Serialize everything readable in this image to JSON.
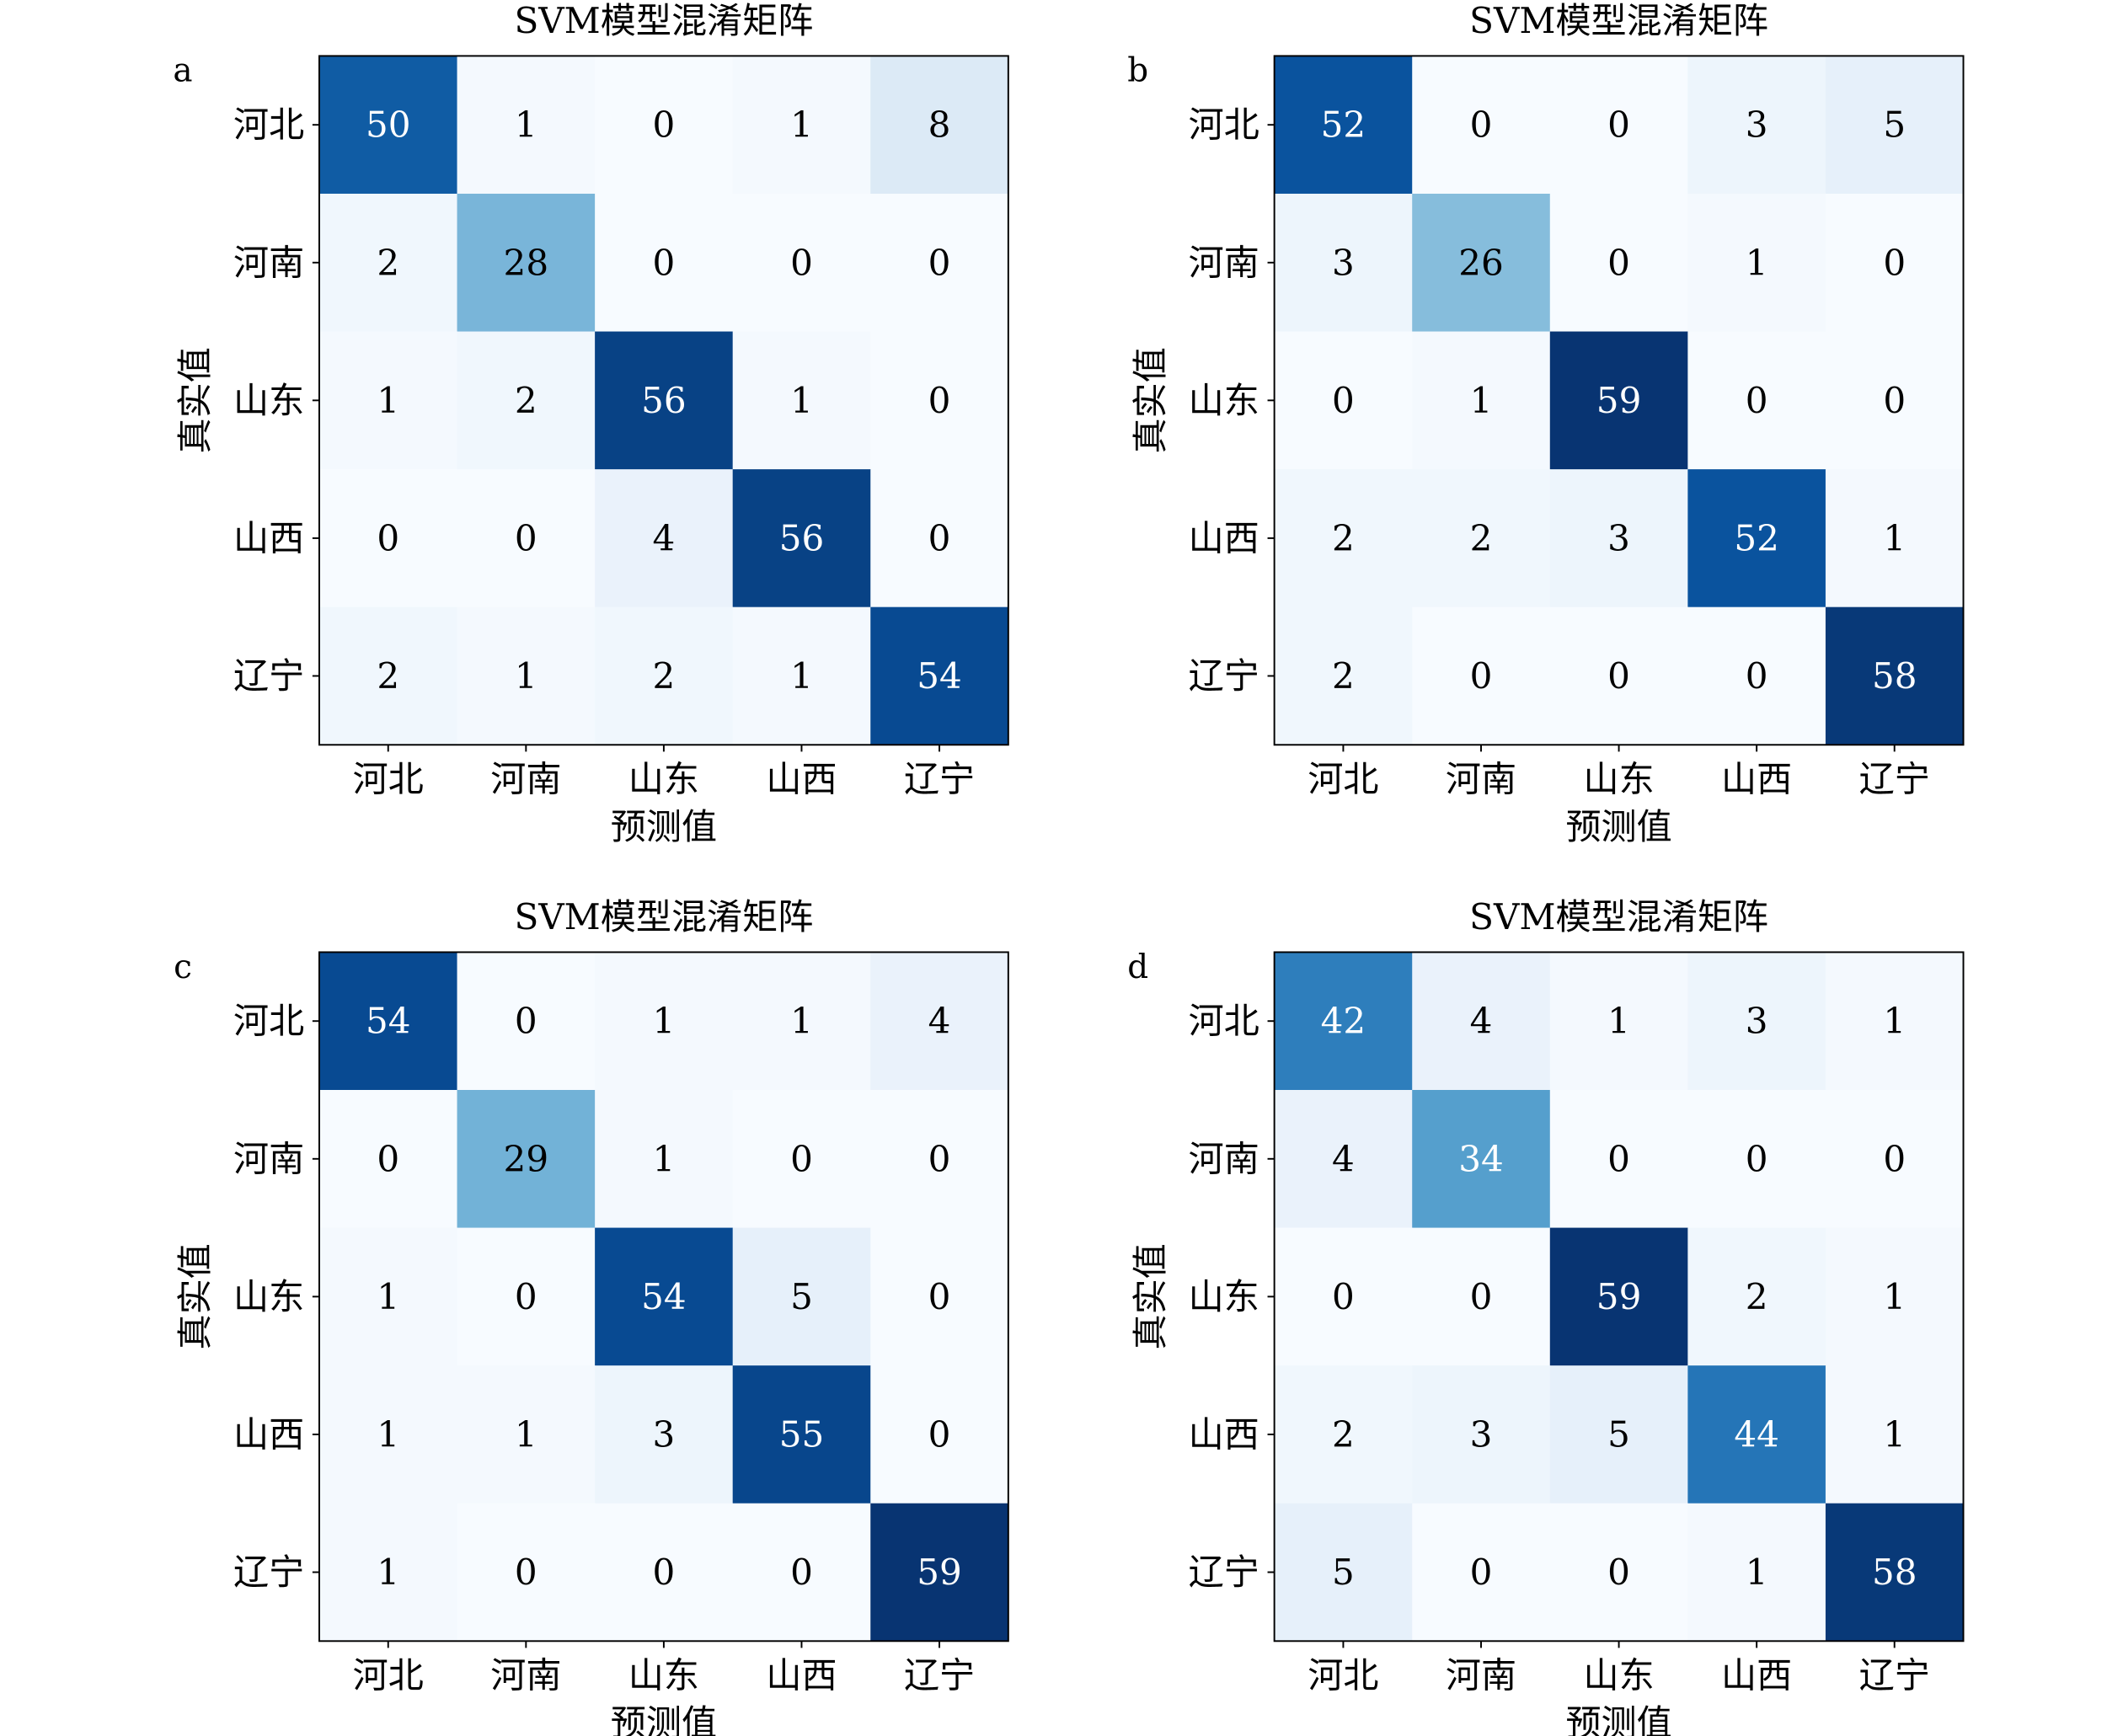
{
  "chart_data": [
    {
      "type": "heatmap",
      "panel_label": "a",
      "title": "SVM模型混淆矩阵",
      "xlabel": "预测值",
      "ylabel": "真实值",
      "x_categories": [
        "河北",
        "河南",
        "山东",
        "山西",
        "辽宁"
      ],
      "y_categories": [
        "河北",
        "河南",
        "山东",
        "山西",
        "辽宁"
      ],
      "colormap": "Blues",
      "color_range": [
        0,
        60
      ],
      "grid": false,
      "values": [
        [
          50,
          1,
          0,
          1,
          8
        ],
        [
          2,
          28,
          0,
          0,
          0
        ],
        [
          1,
          2,
          56,
          1,
          0
        ],
        [
          0,
          0,
          4,
          56,
          0
        ],
        [
          2,
          1,
          2,
          1,
          54
        ]
      ]
    },
    {
      "type": "heatmap",
      "panel_label": "b",
      "title": "SVM模型混淆矩阵",
      "xlabel": "预测值",
      "ylabel": "真实值",
      "x_categories": [
        "河北",
        "河南",
        "山东",
        "山西",
        "辽宁"
      ],
      "y_categories": [
        "河北",
        "河南",
        "山东",
        "山西",
        "辽宁"
      ],
      "colormap": "Blues",
      "color_range": [
        0,
        60
      ],
      "grid": false,
      "values": [
        [
          52,
          0,
          0,
          3,
          5
        ],
        [
          3,
          26,
          0,
          1,
          0
        ],
        [
          0,
          1,
          59,
          0,
          0
        ],
        [
          2,
          2,
          3,
          52,
          1
        ],
        [
          2,
          0,
          0,
          0,
          58
        ]
      ]
    },
    {
      "type": "heatmap",
      "panel_label": "c",
      "title": "SVM模型混淆矩阵",
      "xlabel": "预测值",
      "ylabel": "真实值",
      "x_categories": [
        "河北",
        "河南",
        "山东",
        "山西",
        "辽宁"
      ],
      "y_categories": [
        "河北",
        "河南",
        "山东",
        "山西",
        "辽宁"
      ],
      "colormap": "Blues",
      "color_range": [
        0,
        60
      ],
      "grid": false,
      "values": [
        [
          54,
          0,
          1,
          1,
          4
        ],
        [
          0,
          29,
          1,
          0,
          0
        ],
        [
          1,
          0,
          54,
          5,
          0
        ],
        [
          1,
          1,
          3,
          55,
          0
        ],
        [
          1,
          0,
          0,
          0,
          59
        ]
      ]
    },
    {
      "type": "heatmap",
      "panel_label": "d",
      "title": "SVM模型混淆矩阵",
      "xlabel": "预测值",
      "ylabel": "真实值",
      "x_categories": [
        "河北",
        "河南",
        "山东",
        "山西",
        "辽宁"
      ],
      "y_categories": [
        "河北",
        "河南",
        "山东",
        "山西",
        "辽宁"
      ],
      "colormap": "Blues",
      "color_range": [
        0,
        60
      ],
      "grid": false,
      "values": [
        [
          42,
          4,
          1,
          3,
          1
        ],
        [
          4,
          34,
          0,
          0,
          0
        ],
        [
          0,
          0,
          59,
          2,
          1
        ],
        [
          2,
          3,
          5,
          44,
          1
        ],
        [
          5,
          0,
          0,
          1,
          58
        ]
      ]
    }
  ]
}
